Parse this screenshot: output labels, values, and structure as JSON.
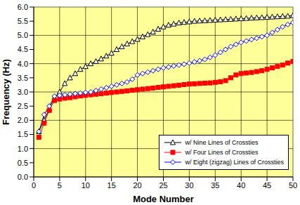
{
  "chart_data": {
    "type": "line",
    "x_label": "Mode Number",
    "y_label": "Frequency (Hz)",
    "x": [
      1,
      2,
      3,
      4,
      5,
      6,
      7,
      8,
      9,
      10,
      11,
      12,
      13,
      14,
      15,
      16,
      17,
      18,
      19,
      20,
      21,
      22,
      23,
      24,
      25,
      26,
      27,
      28,
      29,
      30,
      31,
      32,
      33,
      34,
      35,
      36,
      37,
      38,
      39,
      40,
      41,
      42,
      43,
      44,
      45,
      46,
      47,
      48,
      49,
      50
    ],
    "series": [
      {
        "name": "w/ Nine Lines of Crossties",
        "color": "#000000",
        "marker": "triangle",
        "values": [
          1.6,
          2.0,
          2.4,
          2.8,
          3.0,
          3.3,
          3.5,
          3.65,
          3.8,
          3.9,
          4.0,
          4.08,
          4.17,
          4.27,
          4.37,
          4.5,
          4.6,
          4.7,
          4.78,
          4.86,
          4.95,
          5.03,
          5.12,
          5.22,
          5.3,
          5.36,
          5.4,
          5.44,
          5.46,
          5.48,
          5.5,
          5.51,
          5.52,
          5.53,
          5.54,
          5.55,
          5.56,
          5.57,
          5.58,
          5.59,
          5.6,
          5.61,
          5.62,
          5.63,
          5.64,
          5.65,
          5.66,
          5.67,
          5.68,
          5.7
        ]
      },
      {
        "name": "w/ Four Lines of Crossties",
        "color": "#ff0000",
        "marker": "square",
        "values": [
          1.4,
          1.9,
          2.35,
          2.7,
          2.75,
          2.78,
          2.8,
          2.83,
          2.86,
          2.88,
          2.9,
          2.92,
          2.94,
          2.96,
          2.98,
          3.0,
          3.02,
          3.04,
          3.06,
          3.08,
          3.1,
          3.12,
          3.14,
          3.16,
          3.18,
          3.2,
          3.22,
          3.24,
          3.26,
          3.28,
          3.29,
          3.3,
          3.31,
          3.32,
          3.34,
          3.36,
          3.4,
          3.5,
          3.6,
          3.65,
          3.67,
          3.69,
          3.72,
          3.75,
          3.8,
          3.85,
          3.9,
          3.95,
          4.02,
          4.08
        ]
      },
      {
        "name": "w/ Eight (zigzag) Lines of Crossties",
        "color": "#0000ff",
        "marker": "diamond",
        "values": [
          1.6,
          2.2,
          2.5,
          2.85,
          2.88,
          2.9,
          2.92,
          2.94,
          2.96,
          2.98,
          3.0,
          3.05,
          3.1,
          3.15,
          3.2,
          3.25,
          3.3,
          3.35,
          3.45,
          3.6,
          3.65,
          3.7,
          3.75,
          3.8,
          3.85,
          3.88,
          3.92,
          3.95,
          3.98,
          4.02,
          4.06,
          4.1,
          4.15,
          4.22,
          4.3,
          4.4,
          4.5,
          4.6,
          4.68,
          4.75,
          4.8,
          4.85,
          4.9,
          4.95,
          5.0,
          5.1,
          5.2,
          5.3,
          5.38,
          5.45
        ]
      }
    ],
    "xlim": [
      0,
      50
    ],
    "xticks": [
      0,
      5,
      10,
      15,
      20,
      25,
      30,
      35,
      40,
      45,
      50
    ],
    "ylim": [
      0,
      6
    ],
    "yticks": [
      {
        "value": 0,
        "label": "0.0"
      },
      0.5,
      {
        "value": 1,
        "label": "1.0"
      },
      1.5,
      {
        "value": 2,
        "label": "2.0"
      },
      2.5,
      {
        "value": 3,
        "label": "3.0"
      },
      3.5,
      {
        "value": 4,
        "label": "4.0"
      },
      4.5,
      {
        "value": 5,
        "label": "5.0"
      },
      5.5,
      {
        "value": 6,
        "label": "6.0"
      }
    ],
    "grid": true,
    "legend": "lower right"
  }
}
